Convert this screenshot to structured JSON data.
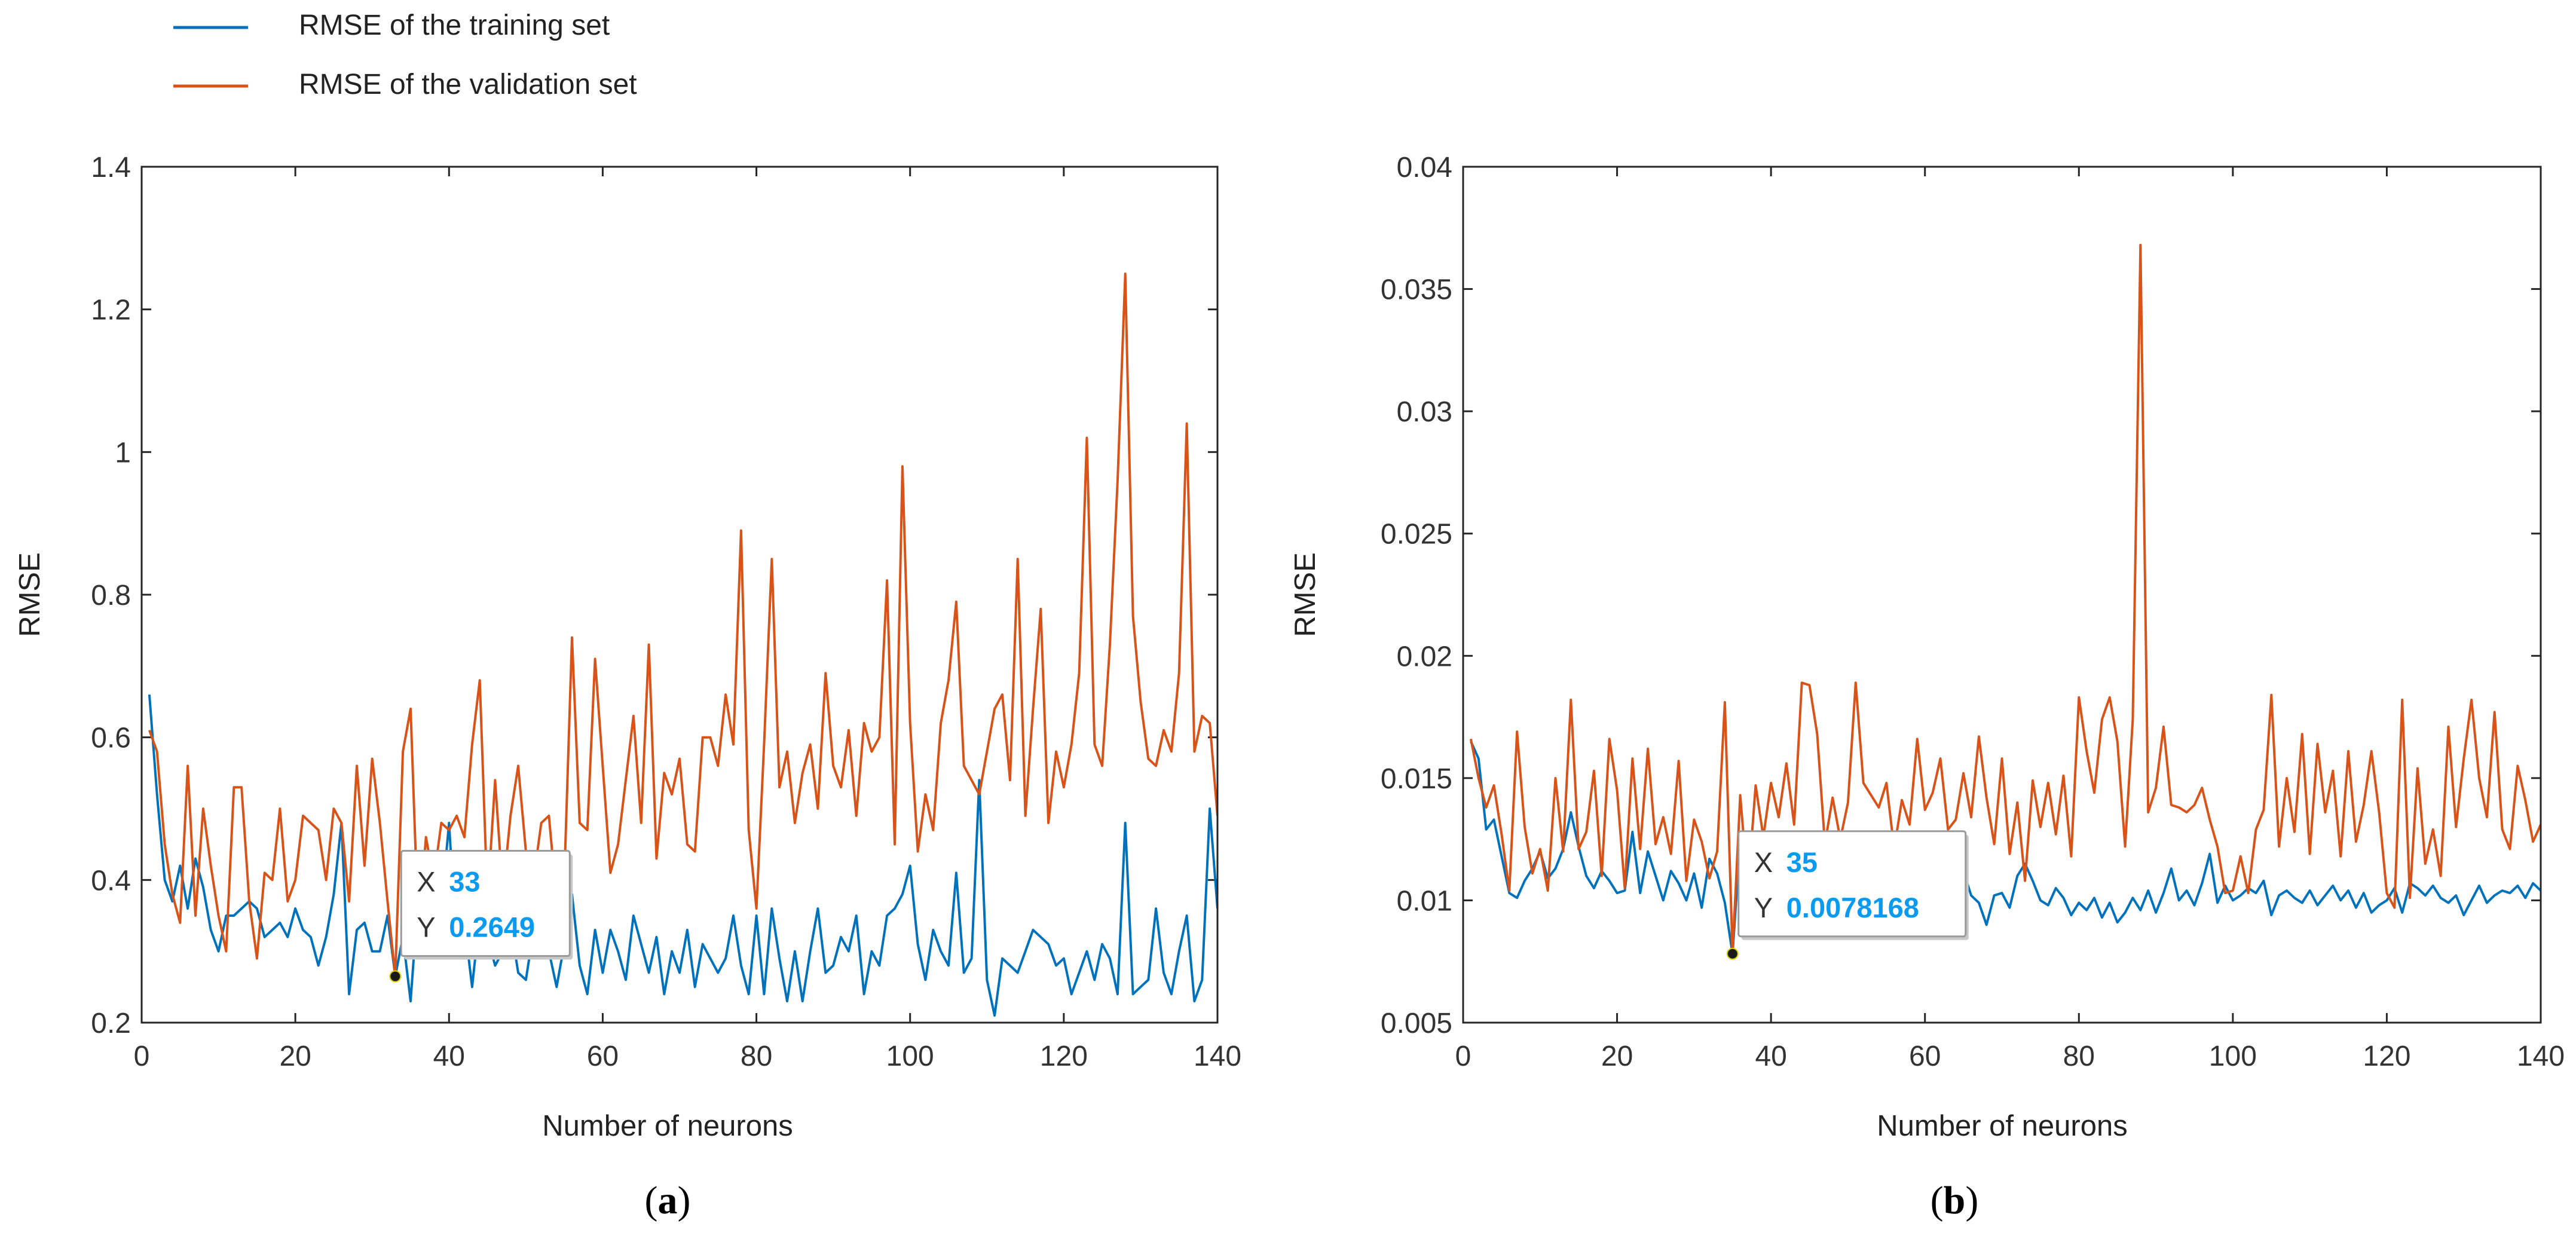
{
  "legend": {
    "items": [
      {
        "label": "RMSE of the training set",
        "color": "#0072BD"
      },
      {
        "label": "RMSE of the validation set",
        "color": "#D95319"
      }
    ]
  },
  "chart_data": [
    {
      "type": "line",
      "caption_letter": "a",
      "caption_open": "(",
      "caption_close": ")",
      "xlabel": "Number of neurons",
      "ylabel": "RMSE",
      "xlim": [
        0,
        140
      ],
      "ylim": [
        0.2,
        1.4
      ],
      "xticks": [
        0,
        20,
        40,
        60,
        80,
        100,
        120,
        140
      ],
      "xtick_labels": [
        "0",
        "20",
        "40",
        "60",
        "80",
        "100",
        "120",
        "140"
      ],
      "yticks": [
        0.2,
        0.4,
        0.6,
        0.8,
        1.0,
        1.2,
        1.4
      ],
      "ytick_labels": [
        "0.2",
        "0.4",
        "0.6",
        "0.8",
        "1",
        "1.2",
        "1.4"
      ],
      "x": [
        1,
        2,
        3,
        4,
        5,
        6,
        7,
        8,
        9,
        10,
        11,
        12,
        13,
        14,
        15,
        16,
        17,
        18,
        19,
        20,
        21,
        22,
        23,
        24,
        25,
        26,
        27,
        28,
        29,
        30,
        31,
        32,
        33,
        34,
        35,
        36,
        37,
        38,
        39,
        40,
        41,
        42,
        43,
        44,
        45,
        46,
        47,
        48,
        49,
        50,
        51,
        52,
        53,
        54,
        55,
        56,
        57,
        58,
        59,
        60,
        61,
        62,
        63,
        64,
        65,
        66,
        67,
        68,
        69,
        70,
        71,
        72,
        73,
        74,
        75,
        76,
        77,
        78,
        79,
        80,
        81,
        82,
        83,
        84,
        85,
        86,
        87,
        88,
        89,
        90,
        91,
        92,
        93,
        94,
        95,
        96,
        97,
        98,
        99,
        100,
        101,
        102,
        103,
        104,
        105,
        106,
        107,
        108,
        109,
        110,
        111,
        112,
        113,
        114,
        115,
        116,
        117,
        118,
        119,
        120,
        121,
        122,
        123,
        124,
        125,
        126,
        127,
        128,
        129,
        130,
        131,
        132,
        133,
        134,
        135,
        136,
        137,
        138,
        139,
        140
      ],
      "series": [
        {
          "name": "RMSE of the training set",
          "color": "#0072BD",
          "values": [
            0.66,
            0.52,
            0.4,
            0.37,
            0.42,
            0.36,
            0.43,
            0.39,
            0.33,
            0.3,
            0.35,
            0.35,
            0.36,
            0.37,
            0.36,
            0.32,
            0.33,
            0.34,
            0.32,
            0.36,
            0.33,
            0.32,
            0.28,
            0.32,
            0.38,
            0.48,
            0.24,
            0.33,
            0.34,
            0.3,
            0.3,
            0.35,
            0.265,
            0.32,
            0.23,
            0.38,
            0.3,
            0.33,
            0.36,
            0.48,
            0.3,
            0.34,
            0.25,
            0.35,
            0.32,
            0.28,
            0.3,
            0.34,
            0.27,
            0.26,
            0.33,
            0.36,
            0.3,
            0.25,
            0.31,
            0.38,
            0.28,
            0.24,
            0.33,
            0.27,
            0.33,
            0.3,
            0.26,
            0.35,
            0.31,
            0.27,
            0.32,
            0.24,
            0.3,
            0.27,
            0.33,
            0.25,
            0.31,
            0.29,
            0.27,
            0.29,
            0.35,
            0.28,
            0.24,
            0.35,
            0.24,
            0.36,
            0.29,
            0.23,
            0.3,
            0.23,
            0.3,
            0.36,
            0.27,
            0.28,
            0.32,
            0.3,
            0.35,
            0.24,
            0.3,
            0.28,
            0.35,
            0.36,
            0.38,
            0.42,
            0.31,
            0.26,
            0.33,
            0.3,
            0.28,
            0.41,
            0.27,
            0.29,
            0.54,
            0.26,
            0.21,
            0.29,
            0.28,
            0.27,
            0.3,
            0.33,
            0.32,
            0.31,
            0.28,
            0.29,
            0.24,
            0.27,
            0.3,
            0.26,
            0.31,
            0.29,
            0.24,
            0.48,
            0.24,
            0.25,
            0.26,
            0.36,
            0.27,
            0.24,
            0.3,
            0.35,
            0.23,
            0.26,
            0.5,
            0.36
          ]
        },
        {
          "name": "RMSE of the validation set",
          "color": "#D95319",
          "values": [
            0.61,
            0.58,
            0.45,
            0.38,
            0.34,
            0.56,
            0.35,
            0.5,
            0.42,
            0.35,
            0.3,
            0.53,
            0.53,
            0.37,
            0.29,
            0.41,
            0.4,
            0.5,
            0.37,
            0.4,
            0.49,
            0.48,
            0.47,
            0.4,
            0.5,
            0.48,
            0.37,
            0.56,
            0.42,
            0.57,
            0.48,
            0.37,
            0.265,
            0.58,
            0.64,
            0.33,
            0.46,
            0.4,
            0.48,
            0.47,
            0.49,
            0.46,
            0.59,
            0.68,
            0.37,
            0.54,
            0.38,
            0.49,
            0.56,
            0.44,
            0.4,
            0.48,
            0.49,
            0.37,
            0.4,
            0.74,
            0.48,
            0.47,
            0.71,
            0.56,
            0.41,
            0.45,
            0.54,
            0.63,
            0.48,
            0.73,
            0.43,
            0.55,
            0.52,
            0.57,
            0.45,
            0.44,
            0.6,
            0.6,
            0.56,
            0.66,
            0.59,
            0.89,
            0.47,
            0.36,
            0.59,
            0.85,
            0.53,
            0.58,
            0.48,
            0.55,
            0.59,
            0.5,
            0.69,
            0.56,
            0.53,
            0.61,
            0.49,
            0.62,
            0.58,
            0.6,
            0.82,
            0.45,
            0.98,
            0.62,
            0.44,
            0.52,
            0.47,
            0.62,
            0.68,
            0.79,
            0.56,
            0.54,
            0.52,
            0.58,
            0.64,
            0.66,
            0.54,
            0.85,
            0.49,
            0.64,
            0.78,
            0.48,
            0.58,
            0.53,
            0.59,
            0.69,
            1.02,
            0.59,
            0.56,
            0.73,
            0.96,
            1.25,
            0.77,
            0.65,
            0.57,
            0.56,
            0.61,
            0.58,
            0.69,
            1.04,
            0.58,
            0.63,
            0.62,
            0.49
          ]
        }
      ],
      "datatip": {
        "x_key": "X",
        "x_value": "33",
        "y_key": "Y",
        "y_value": "0.2649",
        "x": 33,
        "y": 0.2649
      }
    },
    {
      "type": "line",
      "caption_letter": "b",
      "caption_open": "(",
      "caption_close": ")",
      "xlabel": "Number of neurons",
      "ylabel": "RMSE",
      "xlim": [
        0,
        140
      ],
      "ylim": [
        0.005,
        0.04
      ],
      "xticks": [
        0,
        20,
        40,
        60,
        80,
        100,
        120,
        140
      ],
      "xtick_labels": [
        "0",
        "20",
        "40",
        "60",
        "80",
        "100",
        "120",
        "140"
      ],
      "yticks": [
        0.005,
        0.01,
        0.015,
        0.02,
        0.025,
        0.03,
        0.035,
        0.04
      ],
      "ytick_labels": [
        "0.005",
        "0.01",
        "0.015",
        "0.02",
        "0.025",
        "0.03",
        "0.035",
        "0.04"
      ],
      "x": [
        1,
        2,
        3,
        4,
        5,
        6,
        7,
        8,
        9,
        10,
        11,
        12,
        13,
        14,
        15,
        16,
        17,
        18,
        19,
        20,
        21,
        22,
        23,
        24,
        25,
        26,
        27,
        28,
        29,
        30,
        31,
        32,
        33,
        34,
        35,
        36,
        37,
        38,
        39,
        40,
        41,
        42,
        43,
        44,
        45,
        46,
        47,
        48,
        49,
        50,
        51,
        52,
        53,
        54,
        55,
        56,
        57,
        58,
        59,
        60,
        61,
        62,
        63,
        64,
        65,
        66,
        67,
        68,
        69,
        70,
        71,
        72,
        73,
        74,
        75,
        76,
        77,
        78,
        79,
        80,
        81,
        82,
        83,
        84,
        85,
        86,
        87,
        88,
        89,
        90,
        91,
        92,
        93,
        94,
        95,
        96,
        97,
        98,
        99,
        100,
        101,
        102,
        103,
        104,
        105,
        106,
        107,
        108,
        109,
        110,
        111,
        112,
        113,
        114,
        115,
        116,
        117,
        118,
        119,
        120,
        121,
        122,
        123,
        124,
        125,
        126,
        127,
        128,
        129,
        130,
        131,
        132,
        133,
        134,
        135,
        136,
        137,
        138,
        139,
        140
      ],
      "series": [
        {
          "name": "RMSE of the training set",
          "color": "#0072BD",
          "values": [
            0.0165,
            0.0158,
            0.0129,
            0.0133,
            0.0118,
            0.0103,
            0.0101,
            0.0108,
            0.0113,
            0.012,
            0.0109,
            0.0113,
            0.0121,
            0.0136,
            0.0122,
            0.011,
            0.0105,
            0.0112,
            0.0108,
            0.0103,
            0.0104,
            0.0128,
            0.0103,
            0.012,
            0.011,
            0.01,
            0.0112,
            0.0107,
            0.01,
            0.0111,
            0.0097,
            0.0117,
            0.0111,
            0.0099,
            0.0078,
            0.0125,
            0.011,
            0.0104,
            0.0113,
            0.0101,
            0.0112,
            0.0096,
            0.011,
            0.0115,
            0.0102,
            0.0111,
            0.0104,
            0.0109,
            0.0117,
            0.0112,
            0.0105,
            0.0111,
            0.0103,
            0.0116,
            0.0108,
            0.0102,
            0.0112,
            0.0115,
            0.0104,
            0.0112,
            0.0109,
            0.0116,
            0.012,
            0.0117,
            0.0112,
            0.0102,
            0.0099,
            0.009,
            0.0102,
            0.0103,
            0.0097,
            0.011,
            0.0115,
            0.0108,
            0.01,
            0.0098,
            0.0105,
            0.0101,
            0.0094,
            0.0099,
            0.0096,
            0.0101,
            0.0093,
            0.0099,
            0.0091,
            0.0095,
            0.0101,
            0.0096,
            0.0104,
            0.0095,
            0.0103,
            0.0113,
            0.01,
            0.0104,
            0.0098,
            0.0107,
            0.0119,
            0.0099,
            0.0106,
            0.01,
            0.0102,
            0.0105,
            0.0103,
            0.0108,
            0.0094,
            0.0102,
            0.0104,
            0.0101,
            0.0099,
            0.0104,
            0.0098,
            0.0102,
            0.0106,
            0.01,
            0.0104,
            0.0097,
            0.0103,
            0.0095,
            0.0098,
            0.01,
            0.0105,
            0.0095,
            0.0107,
            0.0105,
            0.0102,
            0.0106,
            0.0101,
            0.0099,
            0.0102,
            0.0094,
            0.01,
            0.0106,
            0.0099,
            0.0102,
            0.0104,
            0.0103,
            0.0106,
            0.0101,
            0.0107,
            0.0104
          ]
        },
        {
          "name": "RMSE of the validation set",
          "color": "#D95319",
          "values": [
            0.0166,
            0.015,
            0.0138,
            0.0147,
            0.0127,
            0.0104,
            0.0169,
            0.013,
            0.0111,
            0.0121,
            0.0104,
            0.015,
            0.012,
            0.0182,
            0.0121,
            0.0128,
            0.0153,
            0.011,
            0.0166,
            0.0145,
            0.0105,
            0.0158,
            0.0121,
            0.0162,
            0.0123,
            0.0134,
            0.0119,
            0.0157,
            0.0108,
            0.0133,
            0.0124,
            0.0109,
            0.012,
            0.0181,
            0.0078,
            0.0143,
            0.0105,
            0.0147,
            0.0126,
            0.0148,
            0.0134,
            0.0156,
            0.0131,
            0.0189,
            0.0188,
            0.0168,
            0.0123,
            0.0142,
            0.0125,
            0.014,
            0.0189,
            0.0148,
            0.0143,
            0.0138,
            0.0148,
            0.0121,
            0.0141,
            0.0131,
            0.0166,
            0.0137,
            0.0144,
            0.0158,
            0.0129,
            0.0133,
            0.0152,
            0.0134,
            0.0167,
            0.0142,
            0.0123,
            0.0158,
            0.0119,
            0.014,
            0.0108,
            0.0149,
            0.013,
            0.0148,
            0.0127,
            0.0151,
            0.0118,
            0.0183,
            0.0161,
            0.0144,
            0.0174,
            0.0183,
            0.0165,
            0.0122,
            0.0174,
            0.0368,
            0.0136,
            0.0146,
            0.0171,
            0.0139,
            0.0138,
            0.0136,
            0.0139,
            0.0146,
            0.0133,
            0.0122,
            0.0103,
            0.0104,
            0.0118,
            0.0103,
            0.0129,
            0.0137,
            0.0184,
            0.0122,
            0.015,
            0.0128,
            0.0168,
            0.0119,
            0.0164,
            0.0136,
            0.0153,
            0.0118,
            0.0161,
            0.0124,
            0.0139,
            0.0161,
            0.0136,
            0.0103,
            0.0097,
            0.0182,
            0.0101,
            0.0154,
            0.0115,
            0.0129,
            0.011,
            0.0171,
            0.013,
            0.0158,
            0.0182,
            0.015,
            0.0134,
            0.0177,
            0.0129,
            0.0121,
            0.0155,
            0.0141,
            0.0124,
            0.0131
          ]
        }
      ],
      "datatip": {
        "x_key": "X",
        "x_value": "35",
        "y_key": "Y",
        "y_value": "0.0078168",
        "x": 35,
        "y": 0.0078168
      }
    }
  ]
}
